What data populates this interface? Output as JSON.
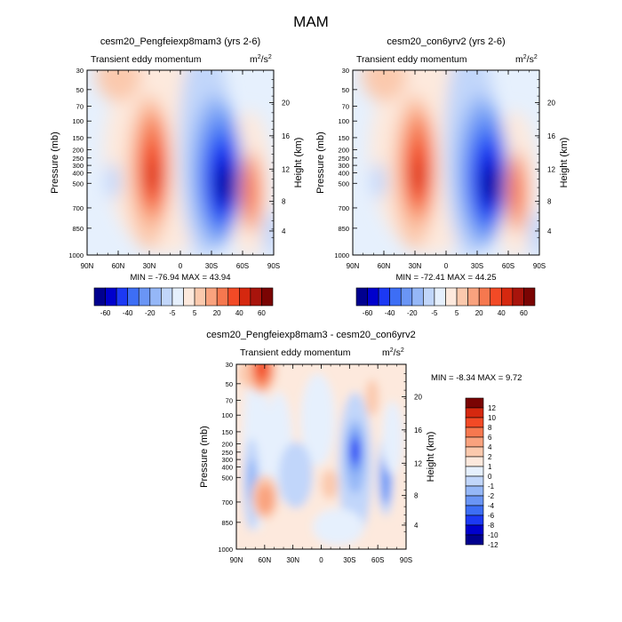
{
  "page": {
    "title": "MAM"
  },
  "palettes": {
    "main": [
      "#00008f",
      "#0000cd",
      "#1c39f4",
      "#3d6ef5",
      "#6a95f5",
      "#95b7f7",
      "#c1d6fa",
      "#e6f0fd",
      "#fde9dd",
      "#fbc9ad",
      "#f9a27e",
      "#f6784f",
      "#f24a26",
      "#d5280f",
      "#a8140c",
      "#7a0403"
    ],
    "diff": [
      "#00008f",
      "#0000cd",
      "#1c39f4",
      "#3d6ef5",
      "#6a95f5",
      "#95b7f7",
      "#c1d6fa",
      "#e6f0fd",
      "#fde9dd",
      "#fbc9ad",
      "#f9a27e",
      "#f6784f",
      "#f24a26",
      "#d5280f",
      "#7a0403"
    ]
  },
  "chart_data": [
    {
      "id": "a",
      "type": "contour",
      "title": "cesm20_Pengfeiexp8mam3 (yrs 2-6)",
      "subtitle": "Transient eddy momentum",
      "units_base": "m",
      "units_sup": "2",
      "units_den": "/s",
      "units_den_sup": "2",
      "ylabel": "Pressure (mb)",
      "ylabel_right": "Height (km)",
      "x_ticks": [
        "90N",
        "60N",
        "30N",
        "0",
        "30S",
        "60S",
        "90S"
      ],
      "y_ticks": [
        "30",
        "50",
        "70",
        "100",
        "150",
        "200",
        "250",
        "300",
        "400",
        "500",
        "700",
        "850",
        "1000"
      ],
      "y_ticks_right": [
        "20",
        "16",
        "12",
        "8",
        "4"
      ],
      "stats": "MIN = -76.94  MAX = 43.94",
      "colorbar": {
        "orientation": "horizontal",
        "labels": [
          "-60",
          "-40",
          "-20",
          "-5",
          "5",
          "20",
          "40",
          "60"
        ]
      },
      "range": {
        "min": -76.94,
        "max": 43.94
      }
    },
    {
      "id": "b",
      "type": "contour",
      "title": "cesm20_con6yrv2 (yrs 2-6)",
      "subtitle": "Transient eddy momentum",
      "units_base": "m",
      "units_sup": "2",
      "units_den": "/s",
      "units_den_sup": "2",
      "ylabel": "Pressure (mb)",
      "ylabel_right": "Height (km)",
      "x_ticks": [
        "90N",
        "60N",
        "30N",
        "0",
        "30S",
        "60S",
        "90S"
      ],
      "y_ticks": [
        "30",
        "50",
        "70",
        "100",
        "150",
        "200",
        "250",
        "300",
        "400",
        "500",
        "700",
        "850",
        "1000"
      ],
      "y_ticks_right": [
        "20",
        "16",
        "12",
        "8",
        "4"
      ],
      "stats": "MIN = -72.41  MAX =  44.25",
      "colorbar": {
        "orientation": "horizontal",
        "labels": [
          "-60",
          "-40",
          "-20",
          "-5",
          "5",
          "20",
          "40",
          "60"
        ]
      },
      "range": {
        "min": -72.41,
        "max": 44.25
      }
    },
    {
      "id": "c",
      "type": "contour",
      "title": "cesm20_Pengfeiexp8mam3 - cesm20_con6yrv2",
      "subtitle": "Transient eddy momentum",
      "units_base": "m",
      "units_sup": "2",
      "units_den": "/s",
      "units_den_sup": "2",
      "ylabel": "Pressure (mb)",
      "ylabel_right": "Height (km)",
      "x_ticks": [
        "90N",
        "60N",
        "30N",
        "0",
        "30S",
        "60S",
        "90S"
      ],
      "y_ticks": [
        "30",
        "50",
        "70",
        "100",
        "150",
        "200",
        "250",
        "300",
        "400",
        "500",
        "700",
        "850",
        "1000"
      ],
      "y_ticks_right": [
        "20",
        "16",
        "12",
        "8",
        "4"
      ],
      "stats": "MIN =  -8.34  MAX =   9.72",
      "colorbar": {
        "orientation": "vertical",
        "labels": [
          "12",
          "10",
          "8",
          "6",
          "4",
          "2",
          "1",
          "0",
          "-1",
          "-2",
          "-4",
          "-6",
          "-8",
          "-10",
          "-12"
        ]
      },
      "range": {
        "min": -8.34,
        "max": 9.72
      }
    }
  ]
}
